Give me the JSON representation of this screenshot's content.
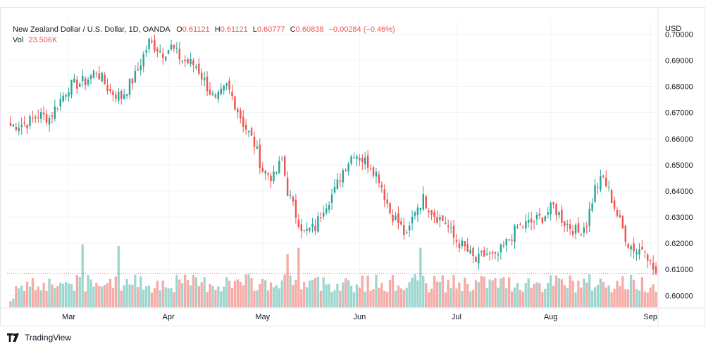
{
  "legend": {
    "symbol": "New Zealand Dollar / U.S. Dollar, 1D, OANDA",
    "o_label": "O",
    "o_value": "0.61121",
    "h_label": "H",
    "h_value": "0.61121",
    "l_label": "L",
    "l_value": "0.60777",
    "c_label": "C",
    "c_value": "0.60838",
    "change": "−0.00284 (−0.46%)",
    "vol_label": "Vol",
    "vol_value": "23.506K"
  },
  "footer": {
    "brand": "TradingView",
    "logo_icon": "tradingview-logo-icon"
  },
  "colors": {
    "up": "#26a69a",
    "down": "#ef5350",
    "up_vol": "#9dd6cf",
    "down_vol": "#f6aba6",
    "grid": "#f0f3fa",
    "axis_text": "#131722",
    "last_line": "#ef5350"
  },
  "chart_data": {
    "type": "candlestick",
    "title": "New Zealand Dollar / U.S. Dollar, 1D, OANDA",
    "price_axis_label": "USD",
    "price_range": [
      0.5955,
      0.7055
    ],
    "price_ticks": [
      0.6,
      0.61,
      0.62,
      0.63,
      0.64,
      0.65,
      0.66,
      0.67,
      0.68,
      0.69,
      0.7
    ],
    "price_tick_labels": [
      "0.60000",
      "0.61000",
      "0.62000",
      "0.63000",
      "0.64000",
      "0.65000",
      "0.66000",
      "0.67000",
      "0.68000",
      "0.69000",
      "0.70000"
    ],
    "time_labels": [
      {
        "label": "Mar",
        "bar": 21
      },
      {
        "label": "Apr",
        "bar": 57
      },
      {
        "label": "May",
        "bar": 91
      },
      {
        "label": "Jun",
        "bar": 126
      },
      {
        "label": "Jul",
        "bar": 161
      },
      {
        "label": "Aug",
        "bar": 195
      },
      {
        "label": "Sep",
        "bar": 231
      }
    ],
    "bar_count": 234,
    "close_anchors": [
      [
        0,
        0.665
      ],
      [
        6,
        0.666
      ],
      [
        10,
        0.669
      ],
      [
        14,
        0.668
      ],
      [
        21,
        0.68
      ],
      [
        27,
        0.682
      ],
      [
        31,
        0.686
      ],
      [
        36,
        0.678
      ],
      [
        40,
        0.676
      ],
      [
        45,
        0.684
      ],
      [
        50,
        0.697
      ],
      [
        55,
        0.693
      ],
      [
        58,
        0.695
      ],
      [
        62,
        0.69
      ],
      [
        67,
        0.688
      ],
      [
        70,
        0.682
      ],
      [
        74,
        0.674
      ],
      [
        78,
        0.68
      ],
      [
        80,
        0.676
      ],
      [
        84,
        0.666
      ],
      [
        88,
        0.658
      ],
      [
        91,
        0.648
      ],
      [
        95,
        0.645
      ],
      [
        98,
        0.652
      ],
      [
        100,
        0.64
      ],
      [
        103,
        0.631
      ],
      [
        106,
        0.624
      ],
      [
        110,
        0.626
      ],
      [
        113,
        0.634
      ],
      [
        117,
        0.64
      ],
      [
        120,
        0.648
      ],
      [
        124,
        0.655
      ],
      [
        127,
        0.652
      ],
      [
        130,
        0.65
      ],
      [
        133,
        0.645
      ],
      [
        137,
        0.632
      ],
      [
        140,
        0.628
      ],
      [
        143,
        0.622
      ],
      [
        146,
        0.633
      ],
      [
        149,
        0.637
      ],
      [
        153,
        0.631
      ],
      [
        157,
        0.628
      ],
      [
        160,
        0.622
      ],
      [
        164,
        0.618
      ],
      [
        168,
        0.613
      ],
      [
        172,
        0.616
      ],
      [
        175,
        0.614
      ],
      [
        179,
        0.62
      ],
      [
        183,
        0.626
      ],
      [
        188,
        0.628
      ],
      [
        192,
        0.63
      ],
      [
        196,
        0.634
      ],
      [
        200,
        0.628
      ],
      [
        205,
        0.624
      ],
      [
        208,
        0.628
      ],
      [
        211,
        0.641
      ],
      [
        214,
        0.645
      ],
      [
        217,
        0.637
      ],
      [
        220,
        0.628
      ],
      [
        223,
        0.62
      ],
      [
        226,
        0.617
      ],
      [
        229,
        0.619
      ],
      [
        231,
        0.612
      ],
      [
        233,
        0.6084
      ]
    ],
    "volume_range": [
      0,
      125000
    ],
    "volume_last": 23506
  }
}
